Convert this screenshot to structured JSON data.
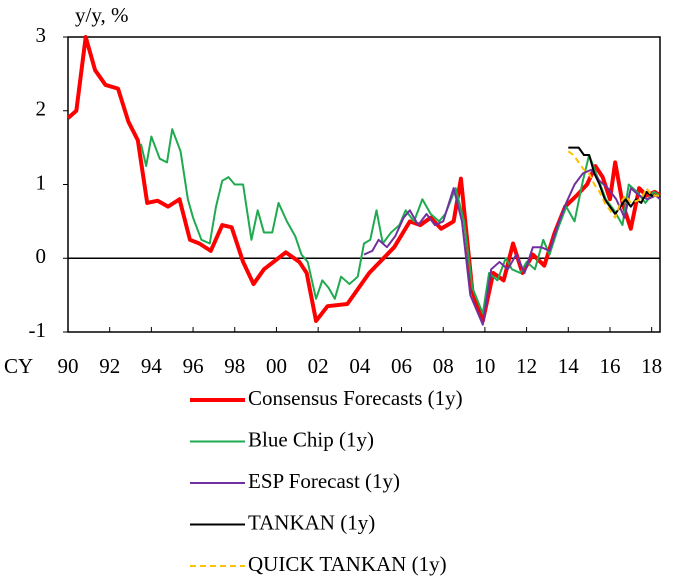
{
  "chart_data": {
    "type": "line",
    "ylabel": "y/y, %",
    "xlabel": "CY",
    "xlim": [
      1990,
      2018.4
    ],
    "ylim": [
      -1,
      3
    ],
    "yticks": [
      -1,
      0,
      1,
      2,
      3
    ],
    "xticks": [
      {
        "value": 1990,
        "label": "90"
      },
      {
        "value": 1992,
        "label": "92"
      },
      {
        "value": 1994,
        "label": "94"
      },
      {
        "value": 1996,
        "label": "96"
      },
      {
        "value": 1998,
        "label": "98"
      },
      {
        "value": 2000,
        "label": "00"
      },
      {
        "value": 2002,
        "label": "02"
      },
      {
        "value": 2004,
        "label": "04"
      },
      {
        "value": 2006,
        "label": "06"
      },
      {
        "value": 2008,
        "label": "08"
      },
      {
        "value": 2010,
        "label": "10"
      },
      {
        "value": 2012,
        "label": "12"
      },
      {
        "value": 2014,
        "label": "14"
      },
      {
        "value": 2016,
        "label": "16"
      },
      {
        "value": 2018,
        "label": "18"
      }
    ],
    "series": [
      {
        "name": "Consensus Forecasts (1y)",
        "color": "#ff0000",
        "x": [
          1990.0,
          1990.4,
          1990.85,
          1991.3,
          1991.8,
          1992.4,
          1992.9,
          1993.35,
          1993.8,
          1994.3,
          1994.8,
          1995.35,
          1995.85,
          1996.3,
          1996.85,
          1997.4,
          1997.85,
          1998.4,
          1998.9,
          1999.4,
          2000.45,
          2001.1,
          2001.45,
          2001.9,
          2002.45,
          2003.4,
          2004.45,
          2005.65,
          2006.4,
          2006.9,
          2007.4,
          2007.9,
          2008.5,
          2008.85,
          2009.4,
          2009.9,
          2010.4,
          2010.9,
          2011.35,
          2011.8,
          2012.3,
          2012.85,
          2013.35,
          2013.85,
          2014.4,
          2014.9,
          2015.3,
          2015.65,
          2016.0,
          2016.25,
          2016.6,
          2017.0,
          2017.4,
          2017.75,
          2018.15,
          2018.4
        ],
        "values": [
          1.9,
          2.0,
          3.0,
          2.55,
          2.35,
          2.3,
          1.85,
          1.6,
          0.75,
          0.78,
          0.7,
          0.8,
          0.25,
          0.2,
          0.1,
          0.45,
          0.42,
          -0.05,
          -0.35,
          -0.15,
          0.08,
          -0.05,
          -0.2,
          -0.85,
          -0.65,
          -0.62,
          -0.2,
          0.15,
          0.5,
          0.45,
          0.55,
          0.4,
          0.5,
          1.08,
          -0.45,
          -0.85,
          -0.2,
          -0.3,
          0.2,
          -0.2,
          0.05,
          -0.1,
          0.35,
          0.7,
          0.85,
          1.0,
          1.25,
          1.1,
          0.8,
          1.3,
          0.75,
          0.4,
          0.95,
          0.85,
          0.9,
          0.85
        ]
      },
      {
        "name": "Blue Chip (1y)",
        "color": "#1faa50",
        "x": [
          1993.5,
          1993.75,
          1994.0,
          1994.4,
          1994.75,
          1995.0,
          1995.4,
          1995.75,
          1996.0,
          1996.4,
          1996.8,
          1997.1,
          1997.4,
          1997.7,
          1998.0,
          1998.4,
          1998.8,
          1999.1,
          1999.4,
          1999.8,
          2000.1,
          2000.5,
          2000.9,
          2001.2,
          2001.5,
          2001.9,
          2002.2,
          2002.5,
          2002.8,
          2003.1,
          2003.5,
          2003.9,
          2004.2,
          2004.5,
          2004.8,
          2005.1,
          2005.5,
          2005.9,
          2006.2,
          2006.6,
          2007.0,
          2007.4,
          2007.8,
          2008.1,
          2008.6,
          2009.0,
          2009.4,
          2009.9,
          2010.2,
          2010.6,
          2011.0,
          2011.3,
          2011.7,
          2012.0,
          2012.4,
          2012.8,
          2013.1,
          2013.5,
          2013.9,
          2014.3,
          2014.7,
          2015.0,
          2015.4,
          2015.8,
          2016.2,
          2016.6,
          2016.9,
          2017.3,
          2017.7,
          2018.1,
          2018.4
        ],
        "values": [
          1.55,
          1.25,
          1.65,
          1.35,
          1.3,
          1.75,
          1.45,
          0.8,
          0.55,
          0.25,
          0.2,
          0.7,
          1.05,
          1.1,
          1.0,
          1.0,
          0.25,
          0.65,
          0.35,
          0.35,
          0.75,
          0.5,
          0.3,
          0.05,
          -0.05,
          -0.55,
          -0.3,
          -0.4,
          -0.55,
          -0.25,
          -0.35,
          -0.25,
          0.2,
          0.25,
          0.65,
          0.2,
          0.35,
          0.45,
          0.65,
          0.5,
          0.8,
          0.6,
          0.5,
          0.6,
          0.95,
          0.5,
          -0.4,
          -0.75,
          -0.2,
          -0.3,
          0.0,
          -0.15,
          -0.2,
          -0.05,
          -0.15,
          0.25,
          0.05,
          0.4,
          0.7,
          0.5,
          1.05,
          1.4,
          1.1,
          0.8,
          0.65,
          0.45,
          1.0,
          0.9,
          0.75,
          0.9,
          0.85
        ]
      },
      {
        "name": "ESP Forecast (1y)",
        "color": "#7030a0",
        "x": [
          2004.2,
          2004.6,
          2004.9,
          2005.3,
          2005.7,
          2006.1,
          2006.4,
          2006.8,
          2007.2,
          2007.6,
          2008.0,
          2008.5,
          2008.9,
          2009.3,
          2009.9,
          2010.3,
          2010.7,
          2011.1,
          2011.5,
          2011.9,
          2012.3,
          2012.7,
          2013.1,
          2013.5,
          2013.9,
          2014.3,
          2014.7,
          2015.1,
          2015.5,
          2015.9,
          2016.3,
          2016.7,
          2017.0,
          2017.4,
          2017.8,
          2018.2,
          2018.4
        ],
        "values": [
          0.05,
          0.1,
          0.25,
          0.15,
          0.3,
          0.55,
          0.65,
          0.45,
          0.6,
          0.45,
          0.5,
          0.95,
          0.5,
          -0.5,
          -0.9,
          -0.15,
          -0.05,
          -0.15,
          0.05,
          -0.2,
          0.15,
          0.15,
          0.1,
          0.45,
          0.75,
          1.0,
          1.15,
          1.2,
          1.05,
          0.95,
          0.8,
          0.55,
          0.95,
          0.85,
          0.8,
          0.85,
          0.8
        ]
      },
      {
        "name": "TANKAN (1y)",
        "color": "#000000",
        "x": [
          2014.0,
          2014.5,
          2014.75,
          2015.0,
          2015.25,
          2015.5,
          2015.75,
          2016.0,
          2016.25,
          2016.5,
          2016.75,
          2017.0,
          2017.25,
          2017.5,
          2017.75,
          2018.0,
          2018.4
        ],
        "values": [
          1.5,
          1.5,
          1.4,
          1.4,
          1.15,
          1.0,
          0.8,
          0.7,
          0.6,
          0.7,
          0.8,
          0.7,
          0.8,
          0.75,
          0.9,
          0.85,
          0.85
        ]
      },
      {
        "name": "QUICK TANKAN (1y)",
        "color": "#ffc000",
        "style": "dashed",
        "x": [
          2014.0,
          2014.25,
          2014.5,
          2014.75,
          2015.0,
          2015.25,
          2015.5,
          2015.75,
          2016.0,
          2016.25,
          2016.5,
          2016.75,
          2017.0,
          2017.5,
          2017.75,
          2018.0,
          2018.4
        ],
        "values": [
          1.45,
          1.4,
          1.3,
          1.2,
          1.15,
          1.0,
          0.9,
          0.75,
          0.65,
          0.55,
          0.75,
          0.85,
          0.75,
          0.8,
          0.95,
          0.85,
          0.85
        ]
      }
    ]
  }
}
